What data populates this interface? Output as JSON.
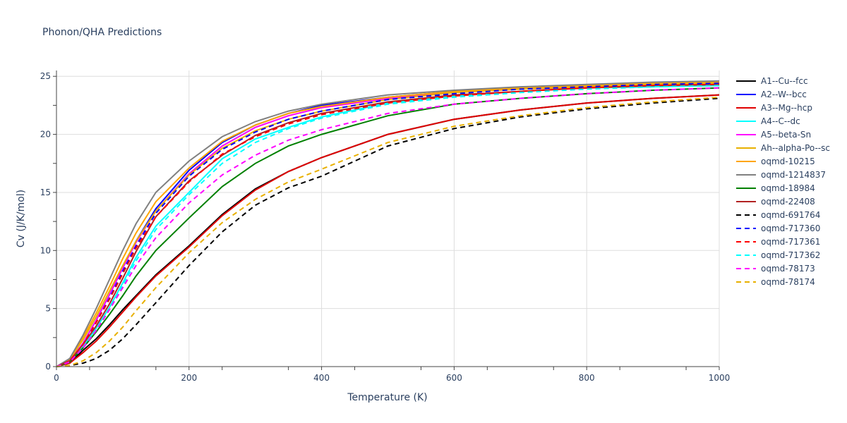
{
  "chart_data": {
    "type": "line",
    "title": "Phonon/QHA Predictions",
    "xlabel": "Temperature (K)",
    "ylabel": "Cv (J/K/mol)",
    "xlim": [
      0,
      1000
    ],
    "ylim": [
      0,
      25.5
    ],
    "xticks": [
      0,
      200,
      400,
      600,
      800,
      1000
    ],
    "yticks": [
      0,
      5,
      10,
      15,
      20,
      25
    ],
    "grid": true,
    "legend_position": "right",
    "x": [
      0,
      20,
      40,
      60,
      80,
      100,
      120,
      150,
      200,
      250,
      300,
      350,
      400,
      500,
      600,
      700,
      800,
      900,
      1000
    ],
    "series": [
      {
        "name": "A1--Cu--fcc",
        "color": "#000000",
        "dash": "solid",
        "values": [
          0,
          0.3,
          1.4,
          2.4,
          3.6,
          4.9,
          6.1,
          7.9,
          10.4,
          13.1,
          15.3,
          16.8,
          18.0,
          20.0,
          21.3,
          22.1,
          22.7,
          23.1,
          23.4
        ]
      },
      {
        "name": "A2--W--bcc",
        "color": "#0000ff",
        "dash": "solid",
        "values": [
          0,
          0.5,
          2.0,
          4.0,
          6.2,
          8.5,
          10.8,
          13.6,
          16.9,
          19.3,
          20.8,
          21.8,
          22.5,
          23.2,
          23.7,
          24.0,
          24.2,
          24.3,
          24.4
        ]
      },
      {
        "name": "A3--Mg--hcp",
        "color": "#e00000",
        "dash": "solid",
        "values": [
          0,
          0.3,
          1.2,
          2.2,
          3.4,
          4.7,
          6.0,
          7.8,
          10.3,
          13.0,
          15.2,
          16.8,
          18.0,
          20.0,
          21.3,
          22.1,
          22.7,
          23.1,
          23.4
        ]
      },
      {
        "name": "A4--C--dc",
        "color": "#00ffff",
        "dash": "solid",
        "values": [
          0,
          0.4,
          1.7,
          3.3,
          5.1,
          7.2,
          9.4,
          12.1,
          15.0,
          17.9,
          19.6,
          20.6,
          21.5,
          22.7,
          23.3,
          23.7,
          24.0,
          24.1,
          24.2
        ]
      },
      {
        "name": "A5--beta-Sn",
        "color": "#ff00ff",
        "dash": "solid",
        "values": [
          0,
          0.5,
          2.0,
          4.0,
          6.2,
          8.5,
          10.7,
          13.4,
          16.6,
          19.0,
          20.6,
          21.6,
          22.3,
          23.1,
          23.6,
          23.9,
          24.1,
          24.3,
          24.4
        ]
      },
      {
        "name": "Ah--alpha-Po--sc",
        "color": "#e8b000",
        "dash": "solid",
        "values": [
          0,
          0.6,
          2.3,
          4.3,
          6.5,
          8.7,
          10.8,
          13.4,
          16.5,
          18.8,
          20.3,
          21.3,
          22.0,
          23.0,
          23.6,
          23.9,
          24.1,
          24.3,
          24.4
        ]
      },
      {
        "name": "oqmd-10215",
        "color": "#ffa500",
        "dash": "solid",
        "values": [
          0,
          0.6,
          2.5,
          4.6,
          6.9,
          9.3,
          11.5,
          14.2,
          17.1,
          19.4,
          20.8,
          21.8,
          22.4,
          23.2,
          23.7,
          24.0,
          24.2,
          24.4,
          24.5
        ]
      },
      {
        "name": "oqmd-1214837",
        "color": "#808080",
        "dash": "solid",
        "values": [
          0,
          0.7,
          2.7,
          5.0,
          7.5,
          10.0,
          12.3,
          15.0,
          17.7,
          19.8,
          21.1,
          22.0,
          22.6,
          23.4,
          23.8,
          24.1,
          24.3,
          24.5,
          24.6
        ]
      },
      {
        "name": "oqmd-18984",
        "color": "#008000",
        "dash": "solid",
        "values": [
          0,
          0.4,
          1.6,
          3.0,
          4.5,
          6.1,
          7.8,
          10.0,
          12.8,
          15.5,
          17.5,
          19.0,
          20.0,
          21.6,
          22.6,
          23.1,
          23.5,
          23.8,
          24.0
        ]
      },
      {
        "name": "oqmd-22408",
        "color": "#b22222",
        "dash": "solid",
        "values": [
          0,
          0.5,
          1.9,
          3.5,
          5.4,
          7.6,
          9.9,
          12.9,
          16.0,
          18.2,
          19.9,
          21.0,
          21.8,
          22.8,
          23.4,
          23.7,
          24.0,
          24.2,
          24.3
        ]
      },
      {
        "name": "oqmd-691764",
        "color": "#000000",
        "dash": "dash",
        "values": [
          0,
          0.1,
          0.3,
          0.7,
          1.4,
          2.4,
          3.6,
          5.5,
          8.7,
          11.6,
          13.9,
          15.4,
          16.4,
          19.0,
          20.5,
          21.5,
          22.2,
          22.7,
          23.1
        ]
      },
      {
        "name": "oqmd-717360",
        "color": "#0000ff",
        "dash": "dash",
        "values": [
          0,
          0.5,
          1.9,
          3.8,
          5.9,
          8.2,
          10.4,
          13.2,
          16.4,
          18.7,
          20.2,
          21.3,
          22.0,
          23.0,
          23.5,
          23.9,
          24.1,
          24.3,
          24.4
        ]
      },
      {
        "name": "oqmd-717361",
        "color": "#ff0000",
        "dash": "dash",
        "values": [
          0,
          0.5,
          1.9,
          3.8,
          5.8,
          8.0,
          10.2,
          12.9,
          15.9,
          18.3,
          19.8,
          20.9,
          21.7,
          22.7,
          23.3,
          23.7,
          24.0,
          24.2,
          24.3
        ]
      },
      {
        "name": "oqmd-717362",
        "color": "#00ffff",
        "dash": "dash",
        "values": [
          0,
          0.4,
          1.6,
          3.2,
          5.0,
          7.0,
          9.1,
          11.8,
          14.8,
          17.5,
          19.3,
          20.5,
          21.4,
          22.6,
          23.2,
          23.6,
          23.9,
          24.1,
          24.2
        ]
      },
      {
        "name": "oqmd-78173",
        "color": "#ff00ff",
        "dash": "dash",
        "values": [
          0,
          0.4,
          1.6,
          3.1,
          4.9,
          6.8,
          8.7,
          11.1,
          14.1,
          16.5,
          18.2,
          19.5,
          20.4,
          21.8,
          22.6,
          23.1,
          23.5,
          23.8,
          24.0
        ]
      },
      {
        "name": "oqmd-78174",
        "color": "#e8b000",
        "dash": "dash",
        "values": [
          0,
          0.1,
          0.5,
          1.2,
          2.2,
          3.4,
          4.8,
          6.8,
          9.8,
          12.4,
          14.4,
          15.9,
          17.0,
          19.3,
          20.7,
          21.6,
          22.3,
          22.8,
          23.2
        ]
      }
    ]
  }
}
